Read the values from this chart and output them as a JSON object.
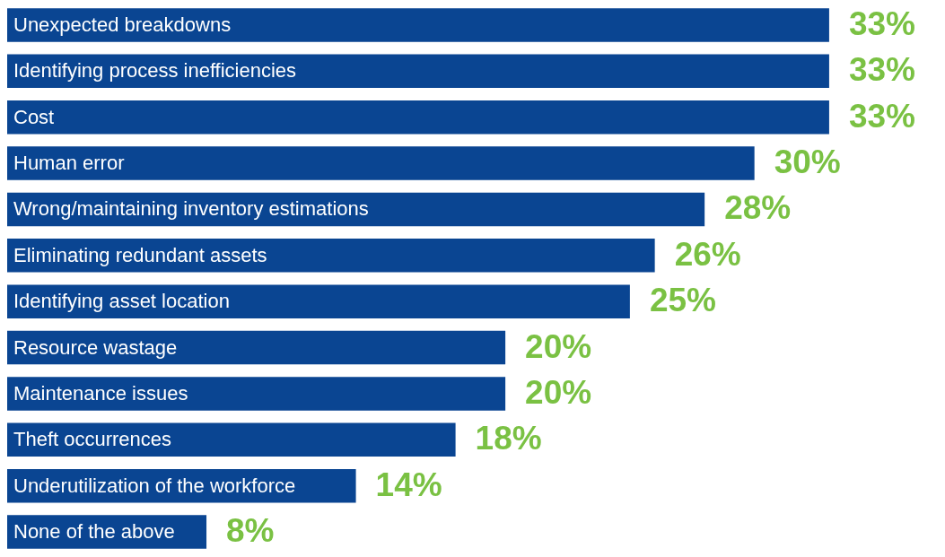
{
  "chart_data": {
    "type": "bar",
    "orientation": "horizontal",
    "categories": [
      "Unexpected breakdowns",
      "Identifying process inefficiencies",
      "Cost",
      "Human error",
      "Wrong/maintaining inventory estimations",
      "Eliminating redundant assets",
      "Identifying asset location",
      "Resource wastage",
      "Maintenance issues",
      "Theft occurrences",
      "Underutilization of the workforce",
      "None of the above"
    ],
    "values": [
      33,
      33,
      33,
      30,
      28,
      26,
      25,
      20,
      20,
      18,
      14,
      8
    ],
    "value_labels": [
      "33%",
      "33%",
      "33%",
      "30%",
      "28%",
      "26%",
      "25%",
      "20%",
      "20%",
      "18%",
      "14%",
      "8%"
    ],
    "color": "#0a4592"
  }
}
